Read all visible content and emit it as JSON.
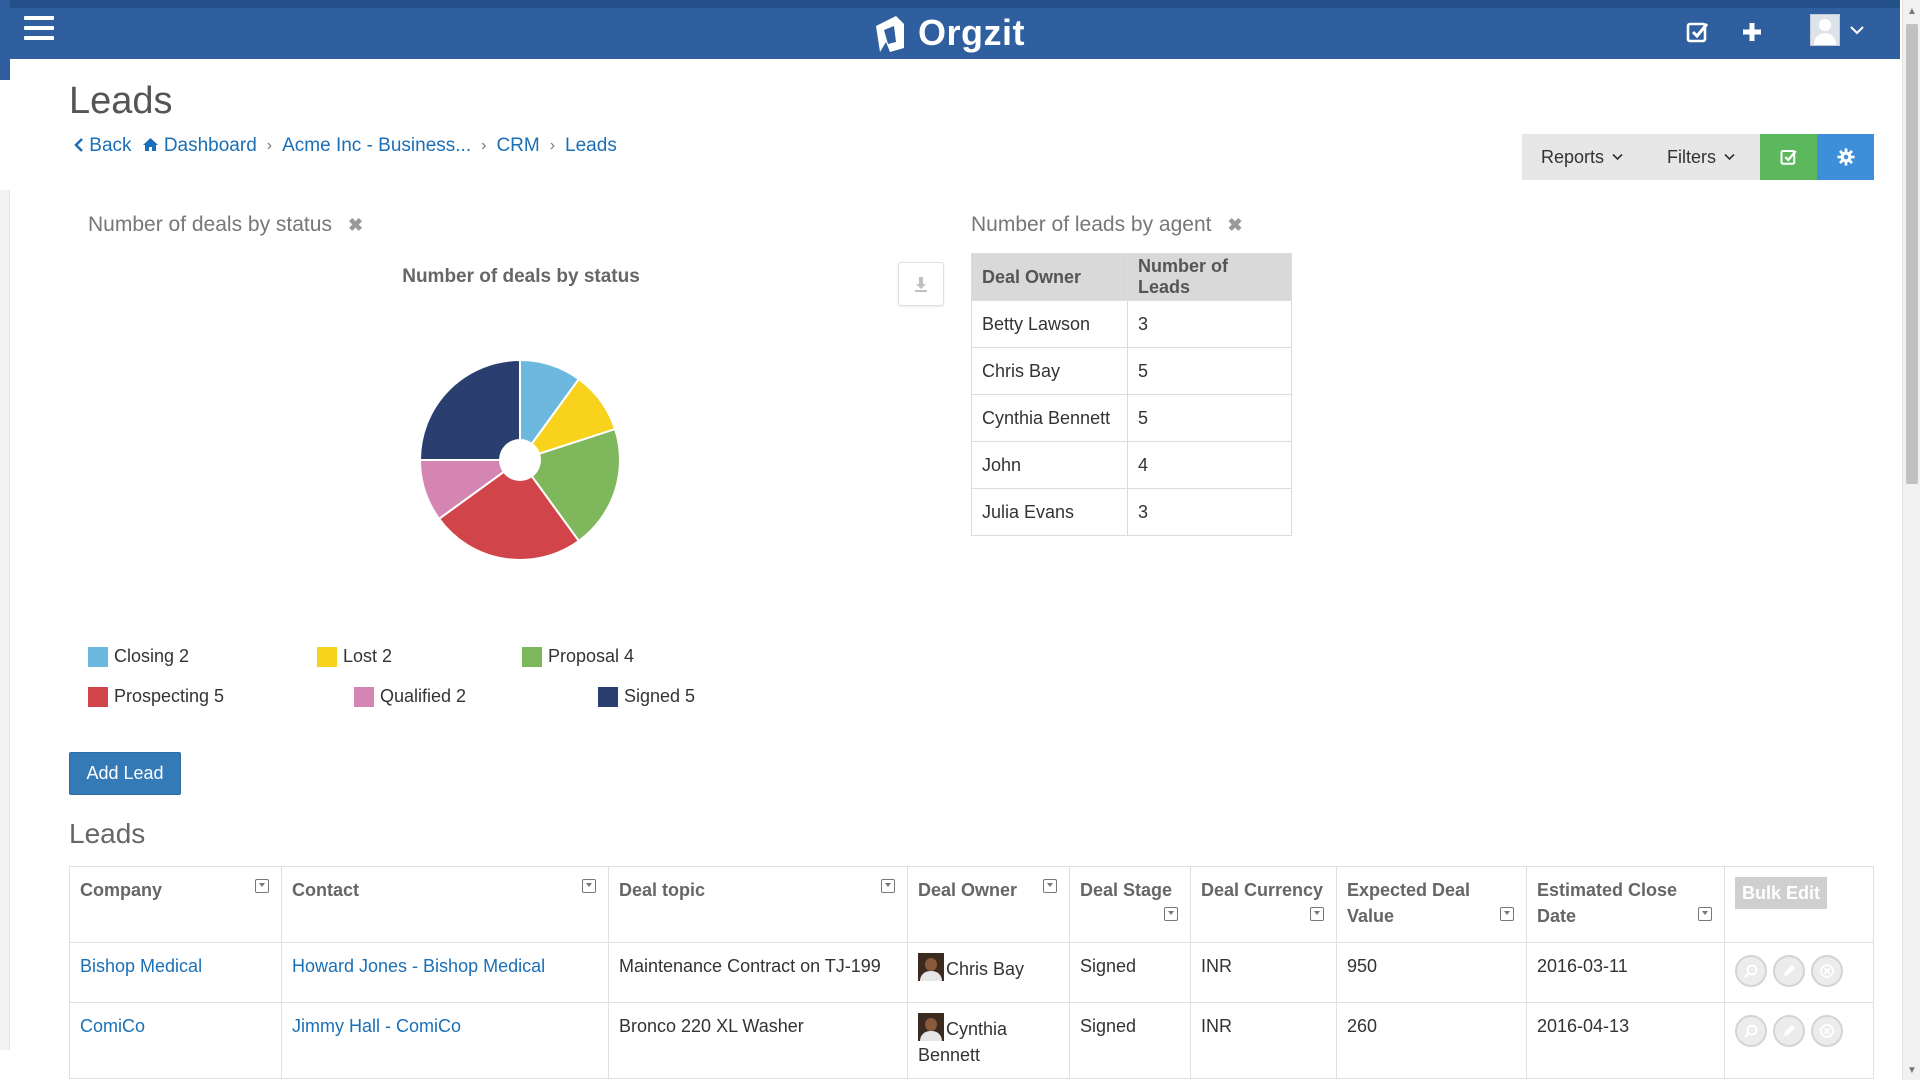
{
  "app": {
    "brand": "Orgzit"
  },
  "page": {
    "title": "Leads"
  },
  "breadcrumb": {
    "back": "Back",
    "items": [
      "Dashboard",
      "Acme Inc - Business...",
      "CRM",
      "Leads"
    ],
    "separator": "›"
  },
  "toolbar": {
    "reports": "Reports",
    "filters": "Filters"
  },
  "widget_status": {
    "title": "Number of deals by status"
  },
  "chart_data": {
    "type": "pie",
    "title": "Number of deals by status",
    "categories": [
      "Closing",
      "Lost",
      "Proposal",
      "Prospecting",
      "Qualified",
      "Signed"
    ],
    "values": [
      2,
      2,
      4,
      5,
      2,
      5
    ],
    "colors": [
      "#6cb8df",
      "#f8d21c",
      "#7fb75c",
      "#d1454a",
      "#d585b2",
      "#2a3e6f"
    ],
    "donut": true,
    "legend": "bottom"
  },
  "widget_agent": {
    "title": "Number of leads by agent"
  },
  "agent_table": {
    "headers": [
      "Deal Owner",
      "Number of Leads"
    ],
    "rows": [
      [
        "Betty Lawson",
        "3"
      ],
      [
        "Chris Bay",
        "5"
      ],
      [
        "Cynthia Bennett",
        "5"
      ],
      [
        "John",
        "4"
      ],
      [
        "Julia Evans",
        "3"
      ]
    ]
  },
  "add_lead": "Add Lead",
  "leads_section": {
    "title": "Leads",
    "columns": [
      "Company",
      "Contact",
      "Deal topic",
      "Deal Owner",
      "Deal Stage",
      "Deal Currency",
      "Expected Deal Value",
      "Estimated Close Date"
    ],
    "bulk_edit": "Bulk Edit",
    "rows": [
      {
        "company": "Bishop Medical",
        "contact": "Howard Jones - Bishop Medical",
        "topic": "Maintenance Contract on TJ-199",
        "owner": "Chris Bay",
        "stage": "Signed",
        "currency": "INR",
        "value": "950",
        "close_date": "2016-03-11"
      },
      {
        "company": "ComiCo",
        "contact": "Jimmy Hall - ComiCo",
        "topic": "Bronco 220 XL Washer",
        "owner": "Cynthia Bennett",
        "stage": "Signed",
        "currency": "INR",
        "value": "260",
        "close_date": "2016-04-13"
      }
    ]
  },
  "icons": {
    "menu": "hamburger-menu-icon",
    "tasks": "check-square-icon",
    "add": "plus-icon",
    "user": "user-avatar-icon",
    "settings": "gear-icon",
    "download": "download-icon"
  }
}
